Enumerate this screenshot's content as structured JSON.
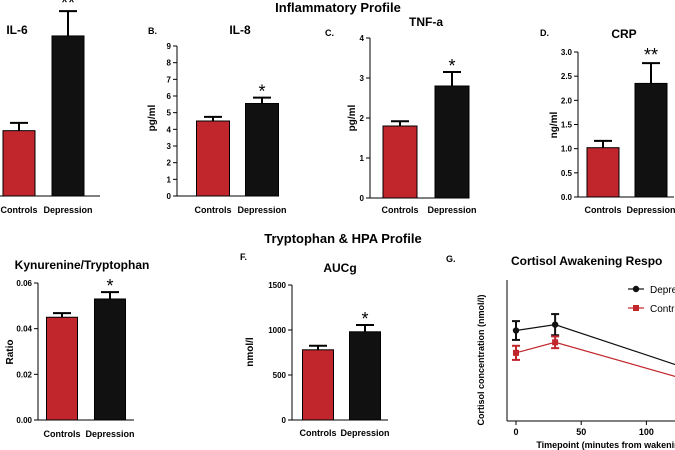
{
  "figure": {
    "section_titles": [
      "Inflammatory Profile",
      "Tryptophan & HPA Profile"
    ]
  },
  "chart_data": [
    {
      "type": "bar",
      "panel_label": "",
      "title": "IL-6",
      "categories": [
        "Controls",
        "Depression"
      ],
      "values": [
        1.0,
        2.45
      ],
      "errors": [
        0.12,
        0.38
      ],
      "colors": [
        "#c0262c",
        "#111111"
      ],
      "significance": "**",
      "ylabel": "",
      "ylim": [
        0,
        3
      ],
      "yticks": []
    },
    {
      "type": "bar",
      "panel_label": "B.",
      "title": "IL-8",
      "categories": [
        "Controls",
        "Depression"
      ],
      "values": [
        4.5,
        5.55
      ],
      "errors": [
        0.25,
        0.35
      ],
      "colors": [
        "#c0262c",
        "#111111"
      ],
      "significance": "*",
      "ylabel": "pg/ml",
      "ylim": [
        0,
        9
      ],
      "yticks": [
        0,
        1,
        2,
        3,
        4,
        5,
        6,
        7,
        8,
        9
      ]
    },
    {
      "type": "bar",
      "panel_label": "C.",
      "title": "TNF-a",
      "categories": [
        "Controls",
        "Depression"
      ],
      "values": [
        1.8,
        2.8
      ],
      "errors": [
        0.12,
        0.35
      ],
      "colors": [
        "#c0262c",
        "#111111"
      ],
      "significance": "*",
      "ylabel": "pg/ml",
      "ylim": [
        0,
        4
      ],
      "yticks": [
        0,
        1,
        2,
        3,
        4
      ]
    },
    {
      "type": "bar",
      "panel_label": "D.",
      "title": "CRP",
      "categories": [
        "Controls",
        "Depression"
      ],
      "values": [
        1.02,
        2.35
      ],
      "errors": [
        0.14,
        0.42
      ],
      "colors": [
        "#c0262c",
        "#111111"
      ],
      "significance": "**",
      "ylabel": "ng/ml",
      "ylim": [
        0,
        3.0
      ],
      "yticks": [
        "0.0",
        "0.5",
        "1.0",
        "1.5",
        "2.0",
        "2.5",
        "3.0"
      ]
    },
    {
      "type": "bar",
      "panel_label": "",
      "title": "Kynurenine/Tryptophan",
      "categories": [
        "Controls",
        "Depression"
      ],
      "values": [
        0.045,
        0.053
      ],
      "errors": [
        0.0018,
        0.003
      ],
      "colors": [
        "#c0262c",
        "#111111"
      ],
      "significance": "*",
      "ylabel": "Ratio",
      "ylim": [
        0,
        0.06
      ],
      "yticks": [
        "0.00",
        "0.02",
        "0.04",
        "0.06"
      ]
    },
    {
      "type": "bar",
      "panel_label": "F.",
      "title": "AUCg",
      "categories": [
        "Controls",
        "Depression"
      ],
      "values": [
        780,
        980
      ],
      "errors": [
        45,
        75
      ],
      "colors": [
        "#c0262c",
        "#111111"
      ],
      "significance": "*",
      "ylabel": "nmol/l",
      "ylim": [
        0,
        1500
      ],
      "yticks": [
        0,
        500,
        1000,
        1500
      ]
    },
    {
      "type": "line",
      "panel_label": "G.",
      "title": "Cortisol Awakening Respo",
      "xlabel": "Timepoint (minutes from wakenin",
      "ylabel": "Cortisol concentration (nmol/l)",
      "xlim": [
        0,
        125
      ],
      "ylim": [
        0,
        12
      ],
      "xticks": [
        0,
        50,
        100
      ],
      "yticks": [],
      "series": [
        {
          "name": "Depre",
          "color": "#111111",
          "marker": "circle",
          "x": [
            0,
            30,
            125
          ],
          "y": [
            7.7,
            8.2,
            4.7
          ],
          "errors": [
            0.8,
            0.9,
            0
          ]
        },
        {
          "name": "Contr",
          "color": "#c0262c",
          "marker": "square",
          "x": [
            0,
            30,
            125
          ],
          "y": [
            5.8,
            6.7,
            3.7
          ],
          "errors": [
            0.6,
            0.5,
            0
          ]
        }
      ]
    }
  ]
}
